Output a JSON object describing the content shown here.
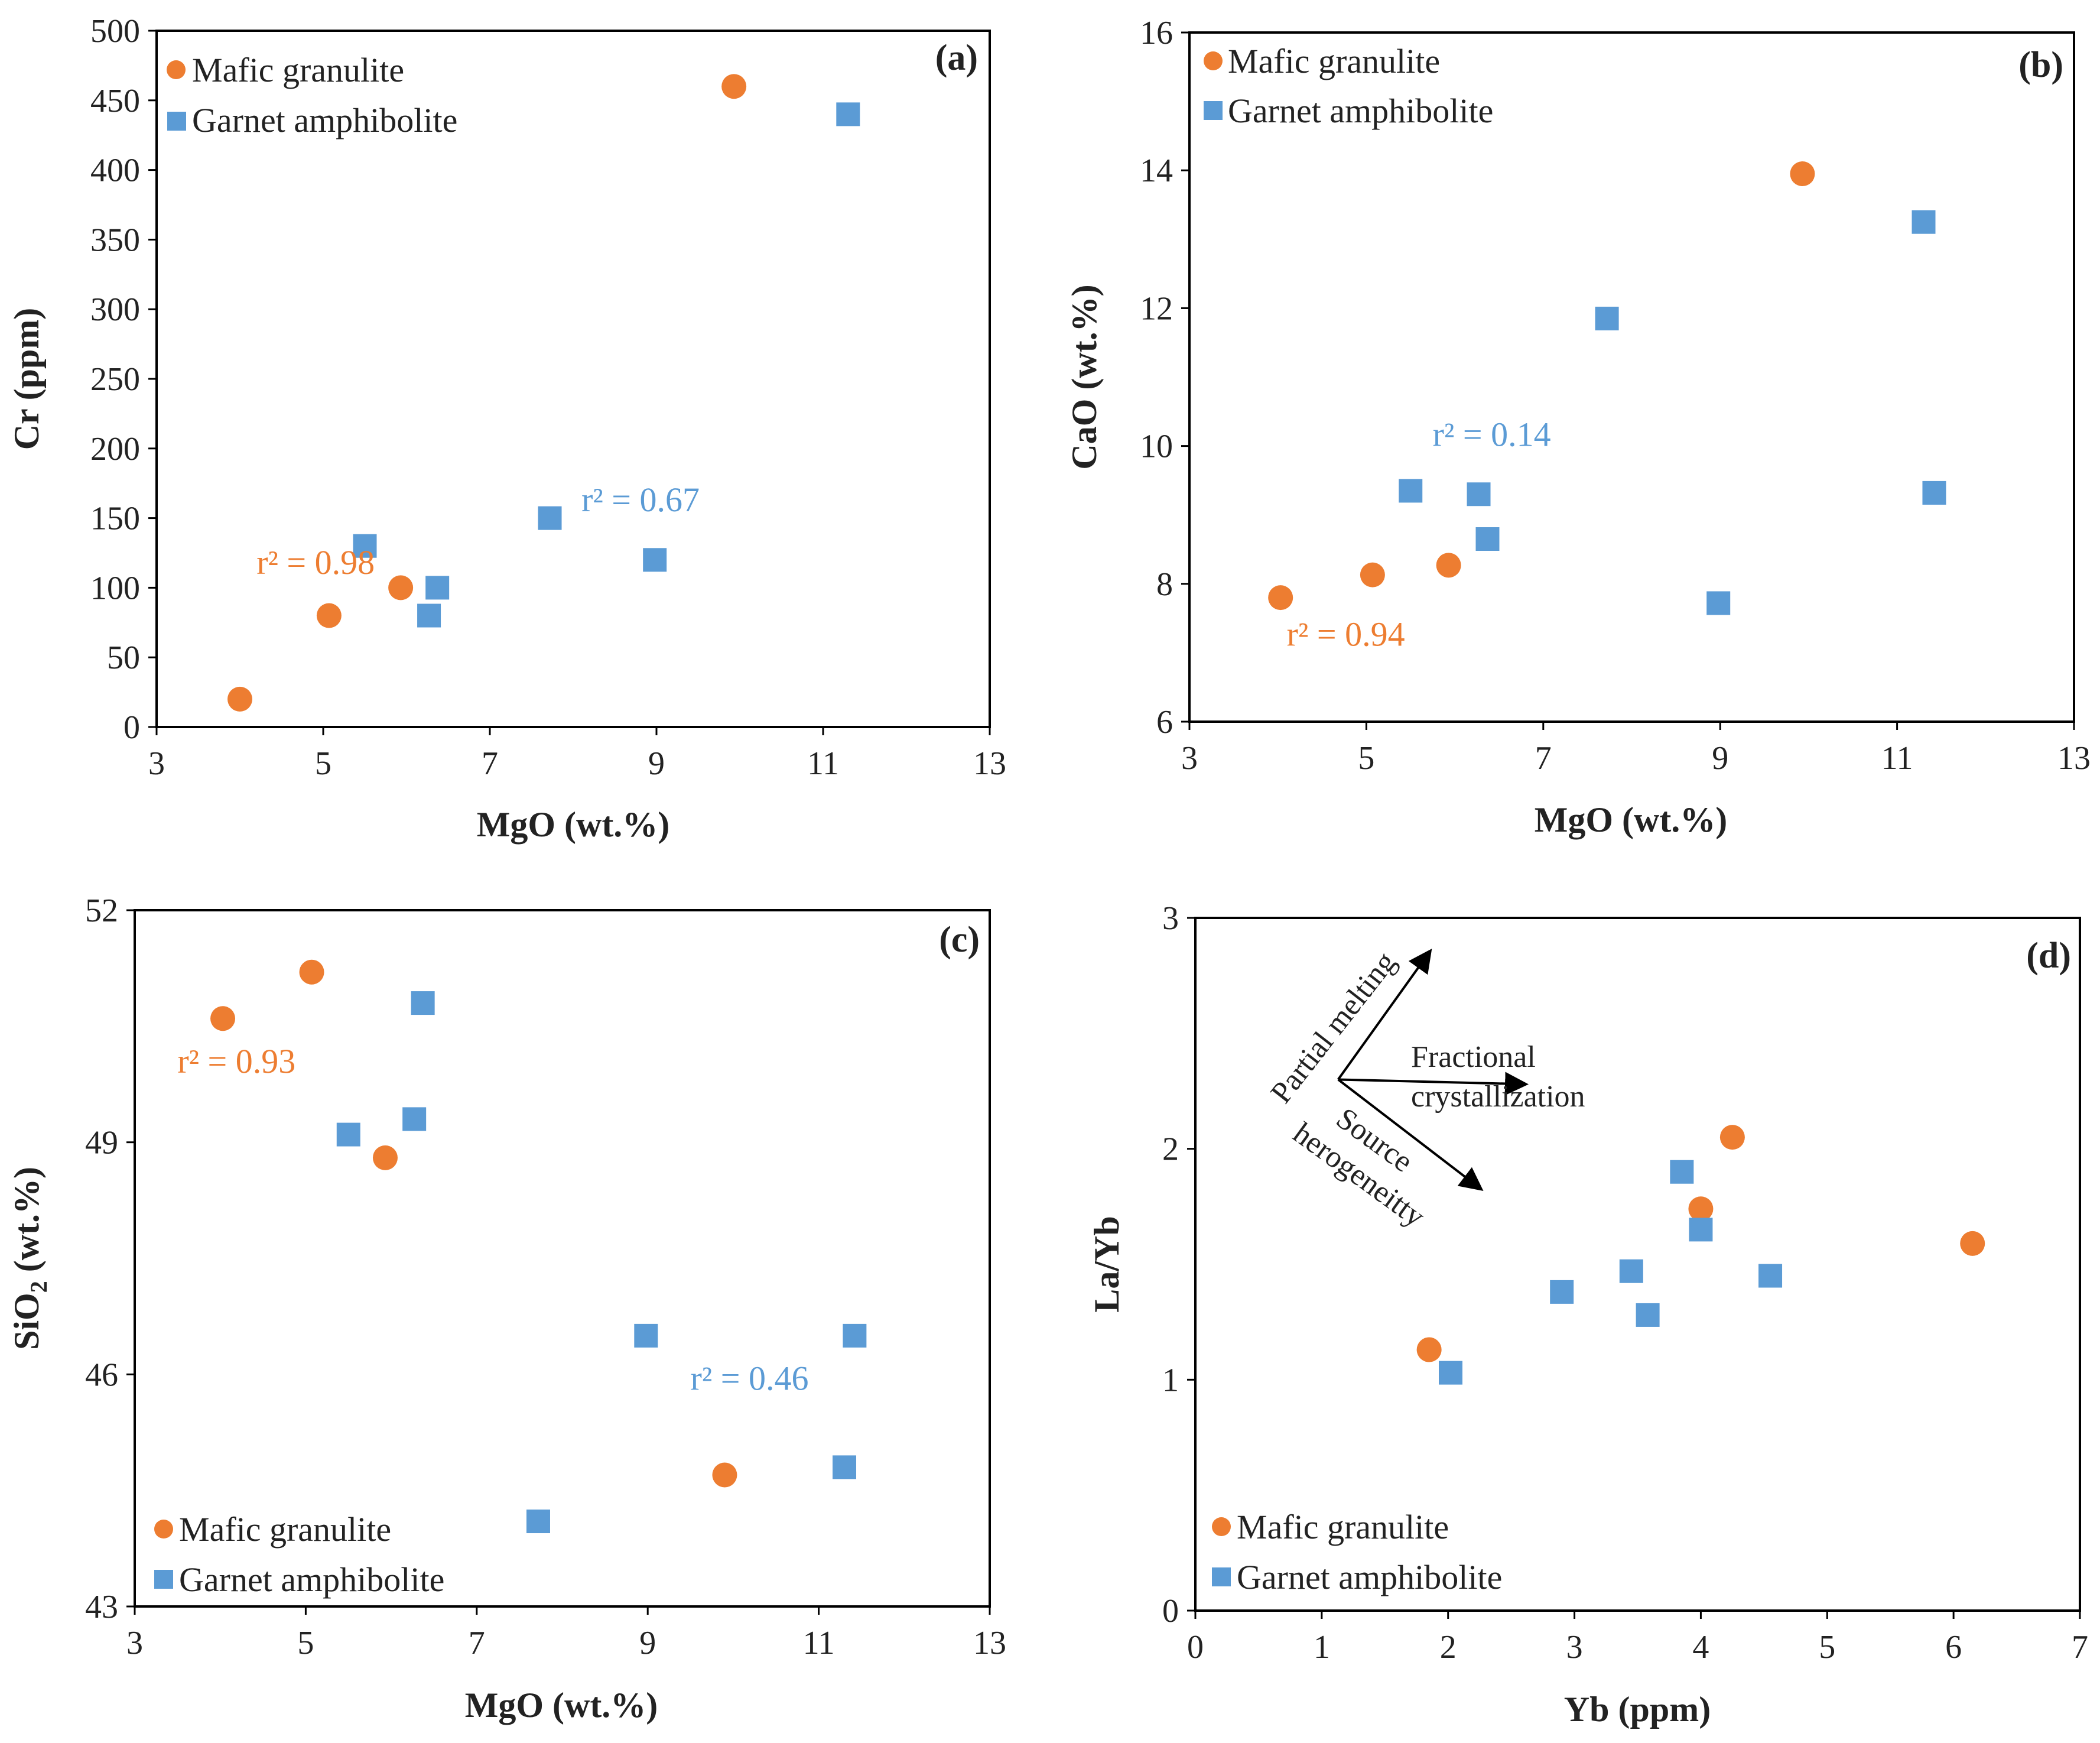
{
  "colors": {
    "mafic": "#ED7D31",
    "garnet": "#5B9BD5",
    "axis": "#000000"
  },
  "legend_labels": {
    "mafic": "Mafic granulite",
    "garnet": "Garnet amphibolite"
  },
  "chart_data": [
    {
      "id": "a",
      "type": "scatter",
      "panel_label": "(a)",
      "xlabel": "MgO (wt.%)",
      "ylabel": "Cr (ppm)",
      "xlim": [
        3,
        13
      ],
      "ylim": [
        0,
        500
      ],
      "xticks": [
        3,
        5,
        7,
        9,
        11,
        13
      ],
      "yticks": [
        0,
        50,
        100,
        150,
        200,
        250,
        300,
        350,
        400,
        450,
        500
      ],
      "legend_position": "top-left",
      "series": [
        {
          "name": "Mafic granulite",
          "marker": "circle",
          "x": [
            4.0,
            5.07,
            5.93,
            9.93
          ],
          "y": [
            20,
            80,
            100,
            460
          ]
        },
        {
          "name": "Garnet amphibolite",
          "marker": "square",
          "x": [
            5.5,
            6.27,
            6.37,
            7.72,
            8.98,
            11.3
          ],
          "y": [
            130,
            80,
            100,
            150,
            120,
            440
          ]
        }
      ],
      "annotations": [
        {
          "series": "Mafic granulite",
          "text": "r² = 0.98",
          "x": 4.2,
          "y": 110
        },
        {
          "series": "Garnet amphibolite",
          "text": "r² = 0.67",
          "x": 8.1,
          "y": 155
        }
      ]
    },
    {
      "id": "b",
      "type": "scatter",
      "panel_label": "(b)",
      "xlabel": "MgO (wt.%)",
      "ylabel": "CaO (wt.%)",
      "xlim": [
        3,
        13
      ],
      "ylim": [
        6,
        16
      ],
      "xticks": [
        3,
        5,
        7,
        9,
        11,
        13
      ],
      "yticks": [
        6,
        8,
        10,
        12,
        14,
        16
      ],
      "legend_position": "top-left",
      "series": [
        {
          "name": "Mafic granulite",
          "marker": "circle",
          "x": [
            4.03,
            5.07,
            5.93,
            9.93
          ],
          "y": [
            7.8,
            8.13,
            8.27,
            13.95
          ]
        },
        {
          "name": "Garnet amphibolite",
          "marker": "square",
          "x": [
            5.5,
            6.27,
            6.37,
            7.72,
            8.98,
            11.3,
            11.42
          ],
          "y": [
            9.35,
            9.3,
            8.65,
            11.85,
            7.72,
            13.25,
            9.32
          ]
        }
      ],
      "annotations": [
        {
          "series": "Garnet amphibolite",
          "text": "r² = 0.14",
          "x": 5.75,
          "y": 10.0
        },
        {
          "series": "Mafic granulite",
          "text": "r² = 0.94",
          "x": 4.1,
          "y": 7.1
        }
      ]
    },
    {
      "id": "c",
      "type": "scatter",
      "panel_label": "(c)",
      "xlabel": "MgO (wt.%)",
      "ylabel": "SiO2 (wt.%)",
      "xlim": [
        3,
        13
      ],
      "ylim": [
        43,
        52
      ],
      "xticks": [
        3,
        5,
        7,
        9,
        11,
        13
      ],
      "yticks": [
        43,
        46,
        49,
        52
      ],
      "legend_position": "bottom-left",
      "series": [
        {
          "name": "Mafic granulite",
          "marker": "circle",
          "x": [
            4.03,
            5.07,
            5.93,
            9.9
          ],
          "y": [
            50.6,
            51.2,
            48.8,
            44.7
          ]
        },
        {
          "name": "Garnet amphibolite",
          "marker": "square",
          "x": [
            5.5,
            6.27,
            6.37,
            7.72,
            8.98,
            11.3,
            11.42
          ],
          "y": [
            49.1,
            49.3,
            50.8,
            44.1,
            46.5,
            44.8,
            46.5
          ]
        }
      ],
      "annotations": [
        {
          "series": "Mafic granulite",
          "text": "r² = 0.93",
          "x": 3.5,
          "y": 49.9
        },
        {
          "series": "Garnet amphibolite",
          "text": "r² = 0.46",
          "x": 9.5,
          "y": 45.8
        }
      ]
    },
    {
      "id": "d",
      "type": "scatter",
      "panel_label": "(d)",
      "xlabel": "Yb (ppm)",
      "ylabel": "La/Yb",
      "xlim": [
        0,
        7
      ],
      "ylim": [
        0,
        3
      ],
      "xticks": [
        0,
        1,
        2,
        3,
        4,
        5,
        6,
        7
      ],
      "yticks": [
        0,
        1,
        2,
        3
      ],
      "legend_position": "bottom-left",
      "series": [
        {
          "name": "Mafic granulite",
          "marker": "circle",
          "x": [
            1.85,
            4.0,
            4.25,
            6.15
          ],
          "y": [
            1.13,
            1.74,
            2.05,
            1.59
          ]
        },
        {
          "name": "Garnet amphibolite",
          "marker": "square",
          "x": [
            2.02,
            2.9,
            3.45,
            3.58,
            3.85,
            4.0,
            4.55
          ],
          "y": [
            1.03,
            1.38,
            1.47,
            1.28,
            1.9,
            1.65,
            1.45
          ]
        }
      ],
      "arrows": {
        "origin": [
          1.13,
          2.3
        ],
        "partial_melting": {
          "text": "Partial melting",
          "to": [
            1.85,
            2.85
          ]
        },
        "fractional_crystallization": {
          "line1": "Fractional",
          "line2": "crystallization",
          "to": [
            2.6,
            2.28
          ]
        },
        "source_heterogeneity": {
          "line1": "Source",
          "line2": "herogeneitty",
          "to": [
            2.25,
            1.83
          ]
        }
      }
    }
  ]
}
